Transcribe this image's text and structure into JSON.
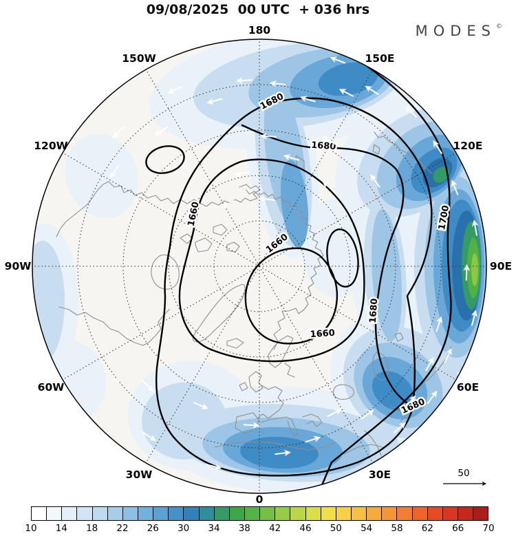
{
  "title": "09/08/2025  00 UTC  + 036 hrs",
  "brand": {
    "logo": "MODES",
    "mark": "©"
  },
  "map": {
    "lon_labels": [
      "180",
      "150E",
      "120E",
      "90E",
      "60E",
      "30E",
      "0",
      "30W",
      "60W",
      "90W",
      "120W",
      "150W"
    ],
    "contour_labels": [
      "1680",
      "1680",
      "1660",
      "1660",
      "1660",
      "1680",
      "1700",
      "1680"
    ],
    "wind_ref": "50"
  },
  "colorbar": {
    "ticks": [
      "10",
      "14",
      "18",
      "22",
      "26",
      "30",
      "34",
      "38",
      "42",
      "46",
      "50",
      "54",
      "58",
      "62",
      "66",
      "70"
    ],
    "colors": [
      "#ffffff",
      "#f3f8fd",
      "#e4eff9",
      "#d2e5f4",
      "#bedaf0",
      "#a6cdea",
      "#8dbfe3",
      "#73b1dc",
      "#5aa2d4",
      "#4392ca",
      "#3181bd",
      "#2e8e9c",
      "#339a68",
      "#3da64b",
      "#55b244",
      "#74bf44",
      "#97cb45",
      "#bbd747",
      "#dade49",
      "#f0df4b",
      "#f6d148",
      "#f8bf43",
      "#f8ab3d",
      "#f69537",
      "#f37e31",
      "#ee652b",
      "#e54c26",
      "#d93722",
      "#c6281e",
      "#ab1c1a"
    ]
  },
  "chart_data": {
    "type": "map",
    "projection": "north-polar",
    "title": "09/08/2025  00 UTC  + 036 hrs",
    "longitude_ring_labels": [
      "180",
      "150W",
      "120W",
      "90W",
      "60W",
      "30W",
      "0",
      "30E",
      "60E",
      "90E",
      "120E",
      "150E"
    ],
    "contour_line_levels_labeled": [
      1660,
      1680,
      1700
    ],
    "colorbar_ticks": [
      10,
      14,
      18,
      22,
      26,
      30,
      34,
      38,
      42,
      46,
      50,
      54,
      58,
      62,
      66,
      70
    ],
    "colorbar_cell_count": 30,
    "reference_arrow_value": 50
  }
}
